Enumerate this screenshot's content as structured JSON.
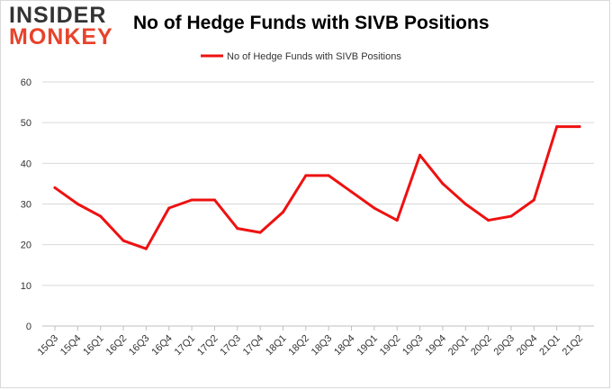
{
  "logo": {
    "line1": "INSIDER",
    "line2": "MONKEY"
  },
  "colors": {
    "series": "#ee1111",
    "grid": "#d9d9d9",
    "logo_accent": "#e8432b"
  },
  "chart_data": {
    "type": "line",
    "title": "No of Hedge Funds with SIVB Positions",
    "categories": [
      "15Q3",
      "15Q4",
      "16Q1",
      "16Q2",
      "16Q3",
      "16Q4",
      "17Q1",
      "17Q2",
      "17Q3",
      "17Q4",
      "18Q1",
      "18Q2",
      "18Q3",
      "18Q4",
      "19Q1",
      "19Q2",
      "19Q3",
      "19Q4",
      "20Q1",
      "20Q2",
      "20Q3",
      "20Q4",
      "21Q1",
      "21Q2"
    ],
    "series": [
      {
        "name": "No of Hedge Funds with SIVB Positions",
        "values": [
          34,
          30,
          27,
          21,
          19,
          29,
          31,
          31,
          24,
          23,
          28,
          37,
          37,
          33,
          29,
          26,
          42,
          35,
          30,
          26,
          27,
          31,
          49,
          49
        ]
      }
    ],
    "ylim": [
      0,
      60
    ],
    "yticks": [
      0,
      10,
      20,
      30,
      40,
      50,
      60
    ],
    "xlabel": "",
    "ylabel": "",
    "grid": "horizontal",
    "legend": "top-center"
  }
}
